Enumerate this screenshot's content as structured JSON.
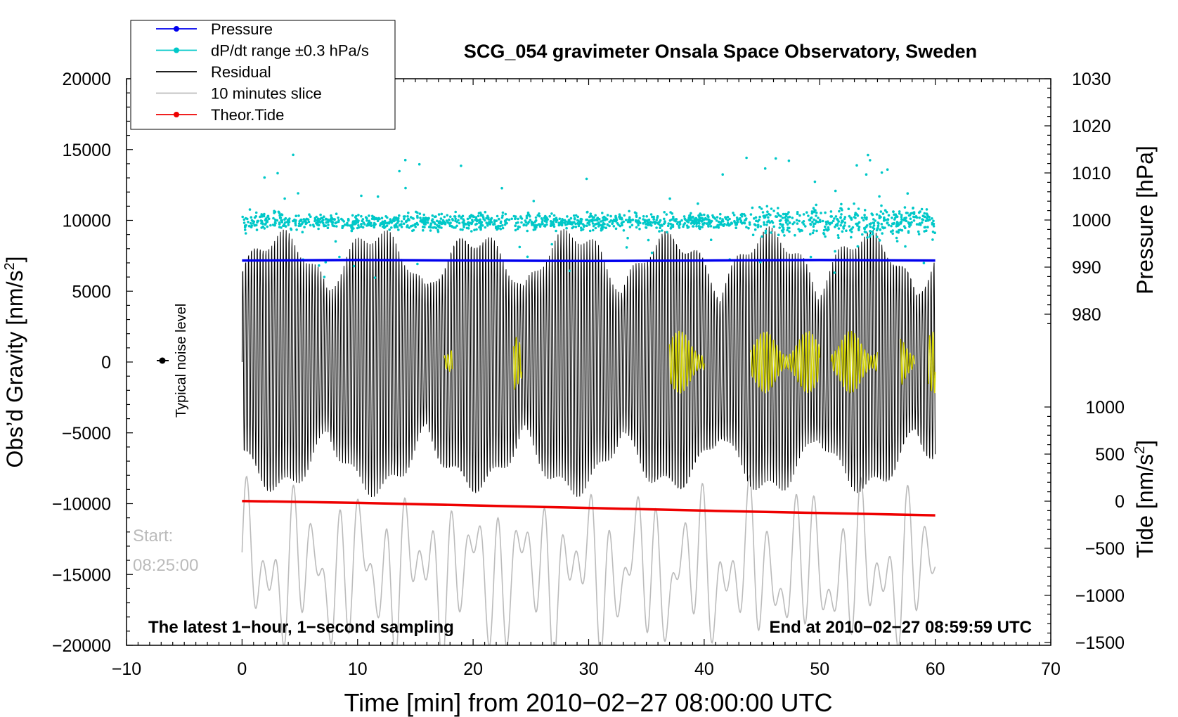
{
  "chart_data": {
    "type": "line",
    "title": "SCG_054 gravimeter Onsala Space Observatory, Sweden",
    "xlabel": "Time [min] from 2010−02−27 08:00:00 UTC",
    "ylabel_left_main": "Obs’d Gravity [nm/s",
    "ylabel_left_sup": "2",
    "ylabel_left_end": "]",
    "ylabel_right_top": "Pressure [hPa]",
    "ylabel_right_bottom_main": "Tide [nm/s",
    "ylabel_right_bottom_sup": "2",
    "ylabel_right_bottom_end": "]",
    "xlim": [
      -10,
      70
    ],
    "ylim": [
      -20000,
      20000
    ],
    "pressure_lim": [
      970,
      1030
    ],
    "tide_lim": [
      -1500,
      1500
    ],
    "x_ticks": [
      {
        "value": -10,
        "label": "−10"
      },
      {
        "value": 0,
        "label": "0"
      },
      {
        "value": 10,
        "label": "10"
      },
      {
        "value": 20,
        "label": "20"
      },
      {
        "value": 30,
        "label": "30"
      },
      {
        "value": 40,
        "label": "40"
      },
      {
        "value": 50,
        "label": "50"
      },
      {
        "value": 60,
        "label": "60"
      },
      {
        "value": 70,
        "label": "70"
      }
    ],
    "y_ticks": [
      {
        "value": 20000,
        "label": "20000"
      },
      {
        "value": 15000,
        "label": "15000"
      },
      {
        "value": 10000,
        "label": "10000"
      },
      {
        "value": 5000,
        "label": "5000"
      },
      {
        "value": 0,
        "label": "0"
      },
      {
        "value": -5000,
        "label": "−5000"
      },
      {
        "value": -10000,
        "label": "−10000"
      },
      {
        "value": -15000,
        "label": "−15000"
      },
      {
        "value": -20000,
        "label": "−20000"
      }
    ],
    "pressure_ticks": [
      {
        "value": 1030,
        "label": "1030"
      },
      {
        "value": 1020,
        "label": "1020"
      },
      {
        "value": 1010,
        "label": "1010"
      },
      {
        "value": 1000,
        "label": "1000"
      },
      {
        "value": 990,
        "label": "990"
      },
      {
        "value": 980,
        "label": "980"
      }
    ],
    "tide_ticks": [
      {
        "value": 1000,
        "label": "1000"
      },
      {
        "value": 500,
        "label": "500"
      },
      {
        "value": 0,
        "label": "0"
      },
      {
        "value": -500,
        "label": "−500"
      },
      {
        "value": -1000,
        "label": "−1000"
      },
      {
        "value": -1500,
        "label": "−1500"
      }
    ],
    "legend": {
      "position": "top-left",
      "entries": [
        {
          "label": "Pressure",
          "color": "#0000ee",
          "marker": true
        },
        {
          "label": "dP/dt range ±0.3 hPa/s",
          "color": "#00c8c8",
          "marker": true
        },
        {
          "label": "Residual",
          "color": "#000000",
          "marker": false
        },
        {
          "label": "10 minutes slice",
          "color": "#bbbbbb",
          "marker": false
        },
        {
          "label": "Theor.Tide",
          "color": "#ee0000",
          "marker": true
        }
      ]
    },
    "series": [
      {
        "name": "Pressure",
        "axis": "pressure",
        "color": "#0000ee",
        "x": [
          0,
          10,
          20,
          30,
          40,
          50,
          60
        ],
        "values": [
          991.4,
          991.5,
          991.4,
          991.3,
          991.4,
          991.5,
          991.4
        ]
      },
      {
        "name": "Theor.Tide",
        "axis": "tide",
        "color": "#ee0000",
        "x": [
          0,
          10,
          20,
          30,
          40,
          50,
          60
        ],
        "values": [
          2,
          -18,
          -45,
          -72,
          -100,
          -125,
          -150
        ]
      },
      {
        "name": "dP/dt range ±0.3 hPa/s",
        "axis": "gravity",
        "color": "#00c8c8",
        "center": 9900,
        "spread": 700
      },
      {
        "name": "Residual",
        "axis": "gravity",
        "color": "#000000",
        "range": [
          -9000,
          9000
        ]
      },
      {
        "name": "10 minutes slice",
        "axis": "gravity",
        "color": "#bbbbbb",
        "range": [
          -21000,
          -8500
        ]
      }
    ],
    "noise_level": {
      "x": -7,
      "value": 0,
      "label": "Typical noise level"
    },
    "annotations": {
      "start_label": "Start:",
      "start_time": "08:25:00",
      "bottom_left": "The latest 1−hour, 1−second sampling",
      "bottom_right": "End at 2010−02−27 08:59:59 UTC"
    },
    "colors": {
      "residual_highlight": "#d2d200",
      "slice": "#bbbbbb",
      "grid": false
    }
  }
}
